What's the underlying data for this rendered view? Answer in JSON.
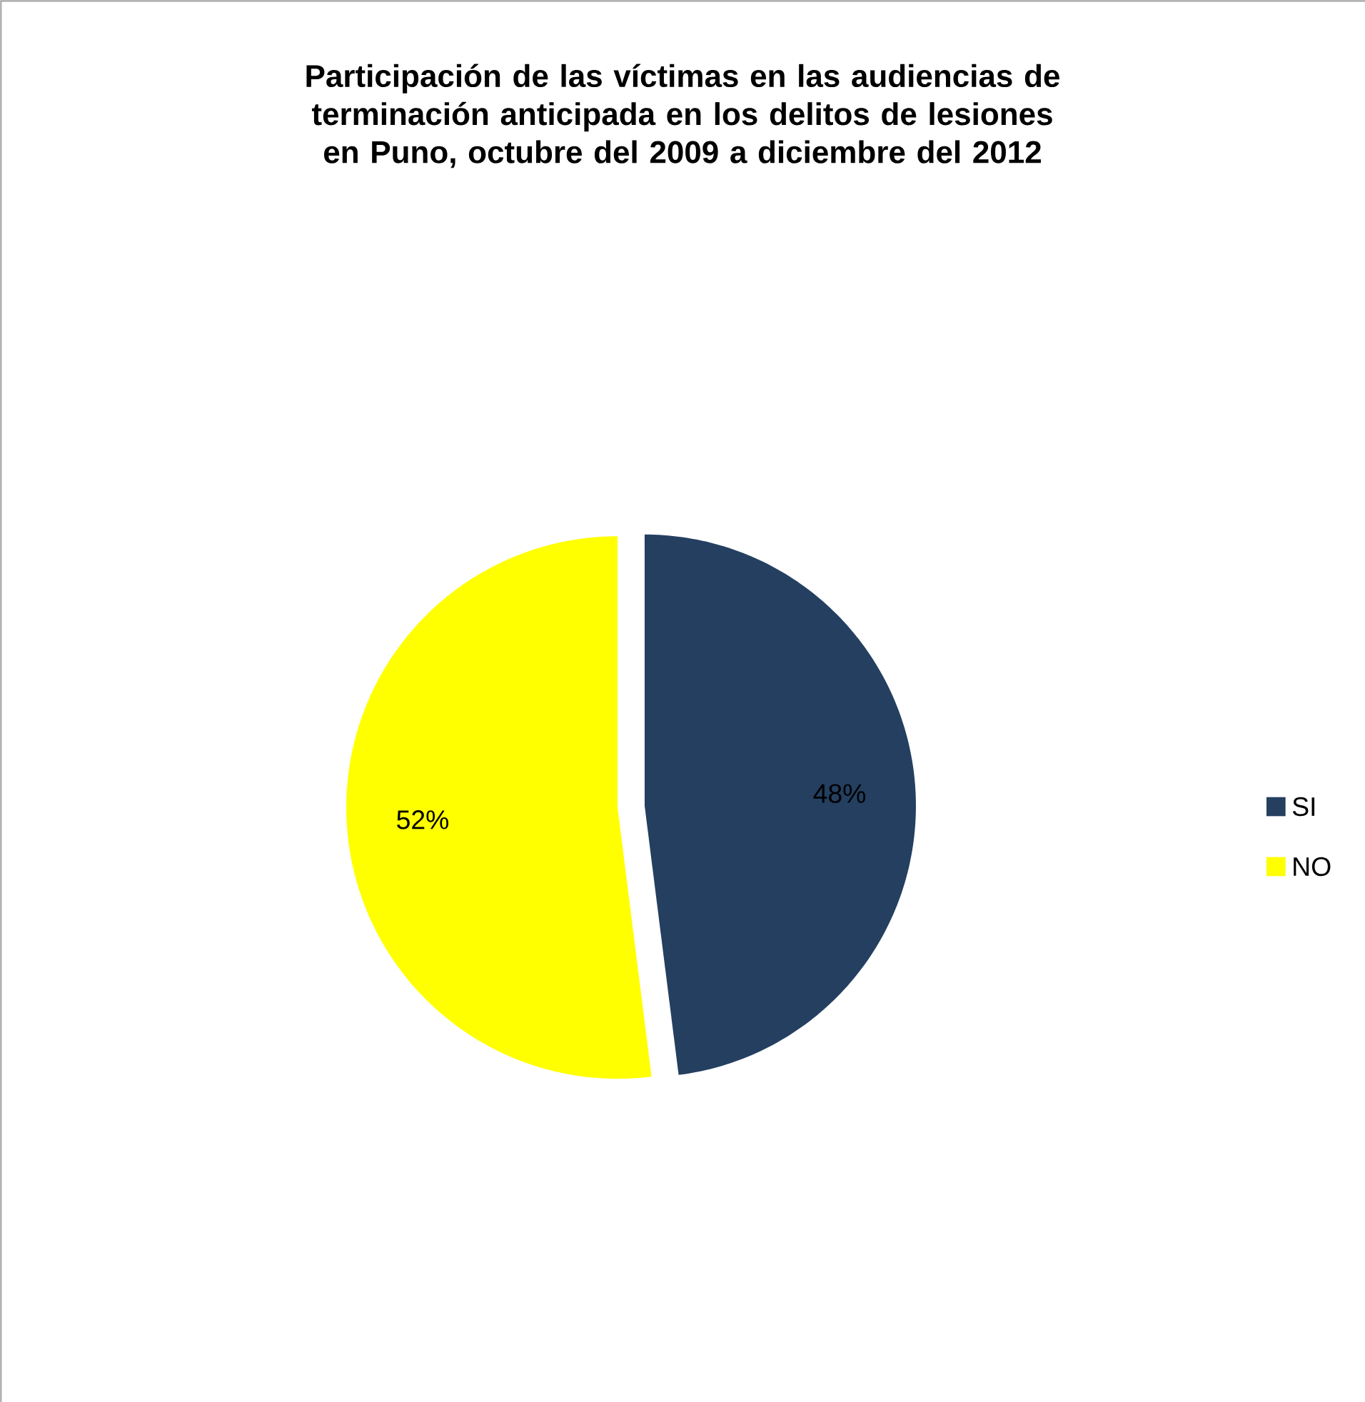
{
  "chart_data": {
    "type": "pie",
    "title": "Participación de las víctimas en las audiencias de terminación anticipada en los delitos de lesiones en Puno, octubre del 2009 a diciembre del 2012",
    "categories": [
      "SI",
      "NO"
    ],
    "values": [
      48,
      52
    ],
    "colors": [
      "#243f60",
      "#ffff00"
    ],
    "value_labels": [
      "48%",
      "52%"
    ],
    "legend": "right"
  }
}
